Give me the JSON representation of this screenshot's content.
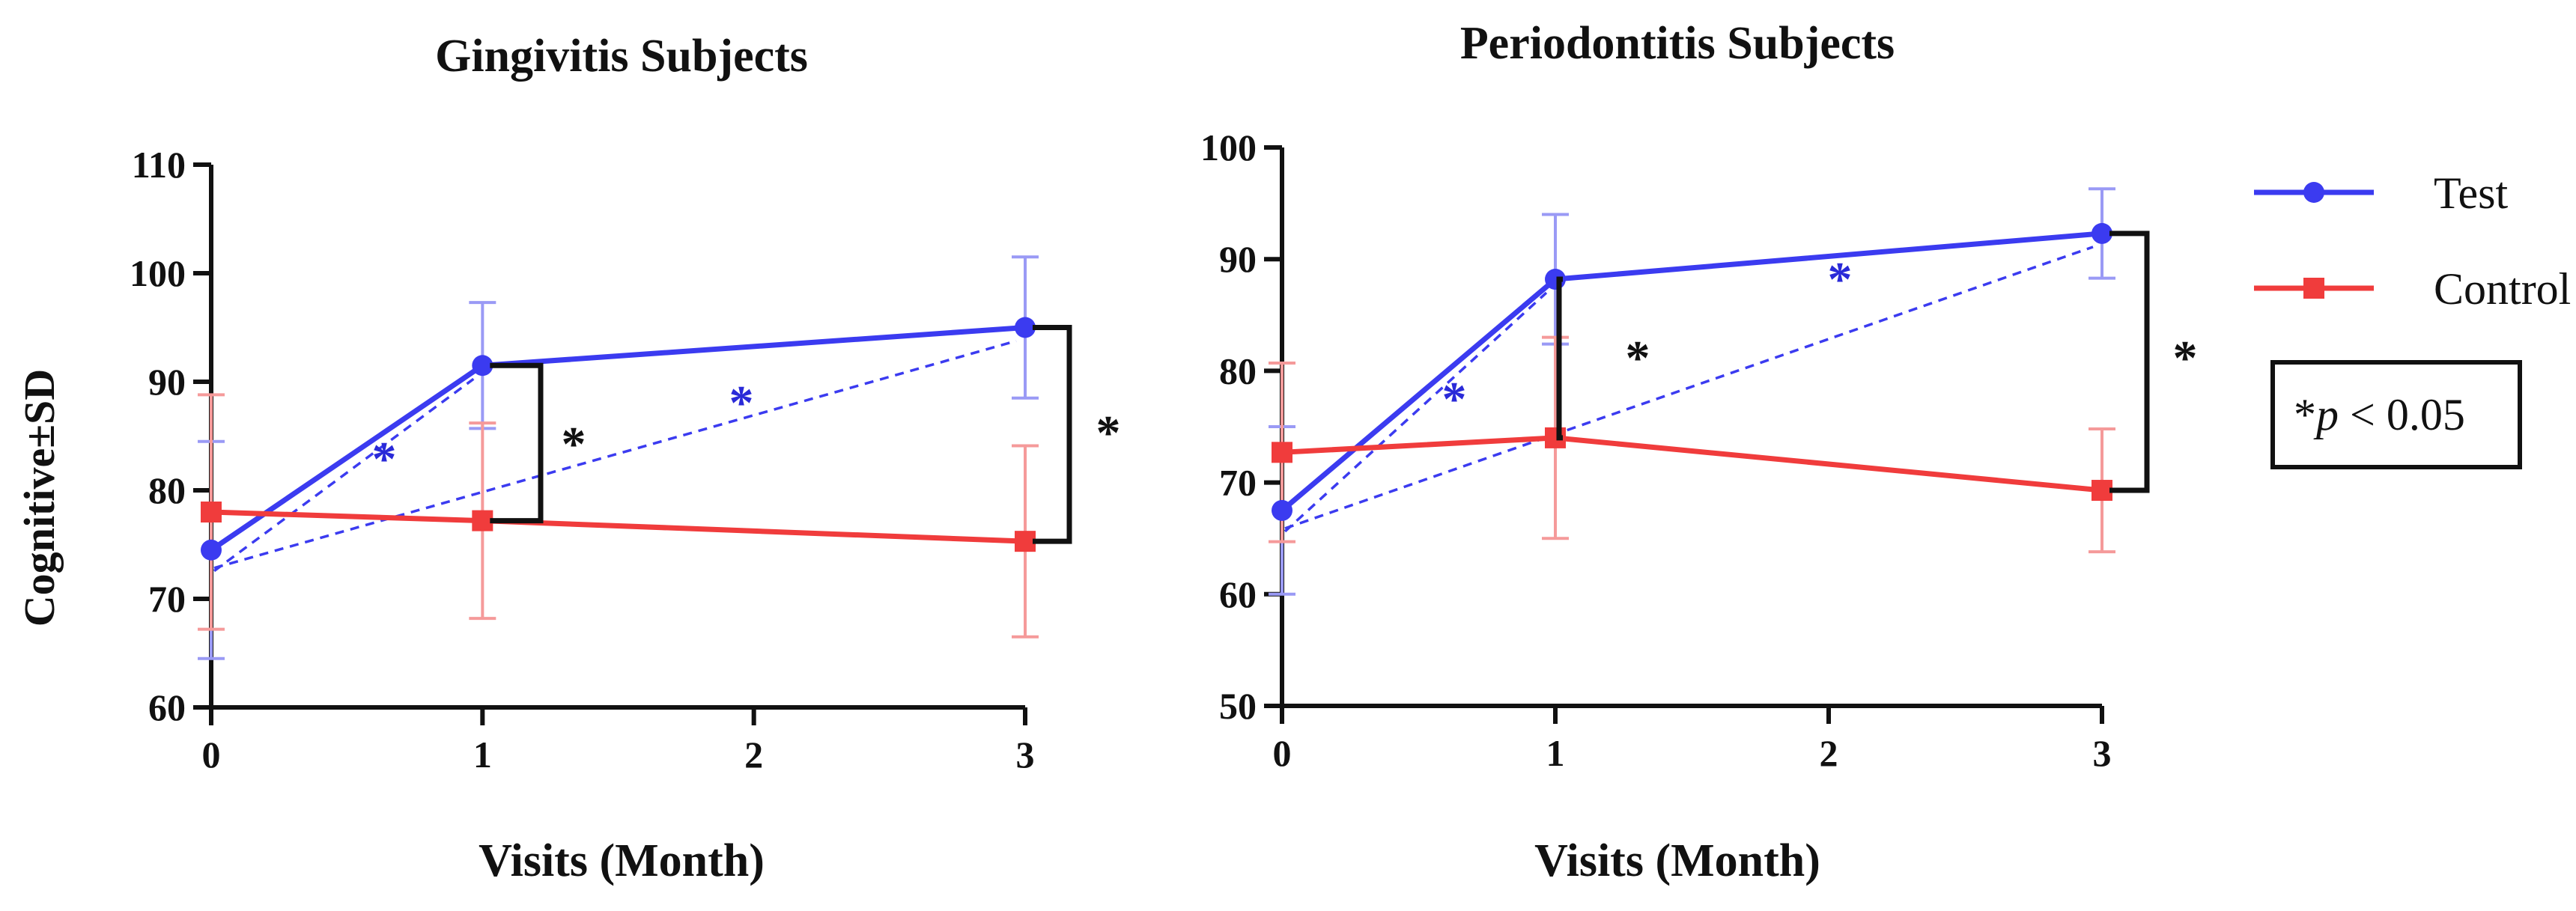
{
  "chart_data": [
    {
      "type": "line",
      "title": "Gingivitis Subjects",
      "xlabel": "Visits (Month)",
      "ylabel": "Cognitive±SD",
      "ylim": [
        60,
        110
      ],
      "yticks": [
        60,
        70,
        80,
        90,
        100,
        110
      ],
      "x": [
        0,
        1,
        3
      ],
      "xticks": [
        "0",
        "1",
        "2",
        "3"
      ],
      "series": [
        {
          "name": "Test",
          "color": "#3b3bf0",
          "marker": "circle",
          "values": [
            74.5,
            91.5,
            95.0
          ],
          "sd": [
            10.0,
            5.8,
            6.5
          ]
        },
        {
          "name": "Control",
          "color": "#f03c3c",
          "marker": "square",
          "values": [
            78.0,
            77.2,
            75.3
          ],
          "sd": [
            10.8,
            9.0,
            8.8
          ]
        }
      ],
      "annotations": [
        {
          "text": "*",
          "kind": "between-groups",
          "x": 1
        },
        {
          "text": "*",
          "kind": "between-groups",
          "x": 3
        },
        {
          "text": "*",
          "kind": "trend",
          "from": 0,
          "to": 1
        },
        {
          "text": "*",
          "kind": "trend",
          "from": 0,
          "to": 3
        }
      ]
    },
    {
      "type": "line",
      "title": "Periodontitis Subjects",
      "xlabel": "Visits (Month)",
      "ylabel": "",
      "ylim": [
        50,
        100
      ],
      "yticks": [
        50,
        60,
        70,
        80,
        90,
        100
      ],
      "x": [
        0,
        1,
        3
      ],
      "xticks": [
        "0",
        "1",
        "2",
        "3"
      ],
      "series": [
        {
          "name": "Test",
          "color": "#3b3bf0",
          "marker": "circle",
          "values": [
            67.5,
            88.2,
            92.3
          ],
          "sd": [
            7.5,
            5.8,
            4.0
          ]
        },
        {
          "name": "Control",
          "color": "#f03c3c",
          "marker": "square",
          "values": [
            72.7,
            74.0,
            69.3
          ],
          "sd": [
            8.0,
            9.0,
            5.5
          ]
        }
      ],
      "annotations": [
        {
          "text": "*",
          "kind": "between-groups",
          "x": 1
        },
        {
          "text": "*",
          "kind": "between-groups",
          "x": 3
        },
        {
          "text": "*",
          "kind": "trend",
          "from": 0,
          "to": 1
        },
        {
          "text": "*",
          "kind": "trend",
          "from": 0,
          "to": 3
        }
      ]
    }
  ],
  "legend": {
    "position": "right",
    "entries": [
      {
        "label": "Test",
        "color": "#3b3bf0",
        "marker": "circle"
      },
      {
        "label": "Control",
        "color": "#f03c3c",
        "marker": "square"
      }
    ]
  },
  "pvalue_note": {
    "star": "*",
    "p": "p",
    "rest": " < 0.05"
  }
}
